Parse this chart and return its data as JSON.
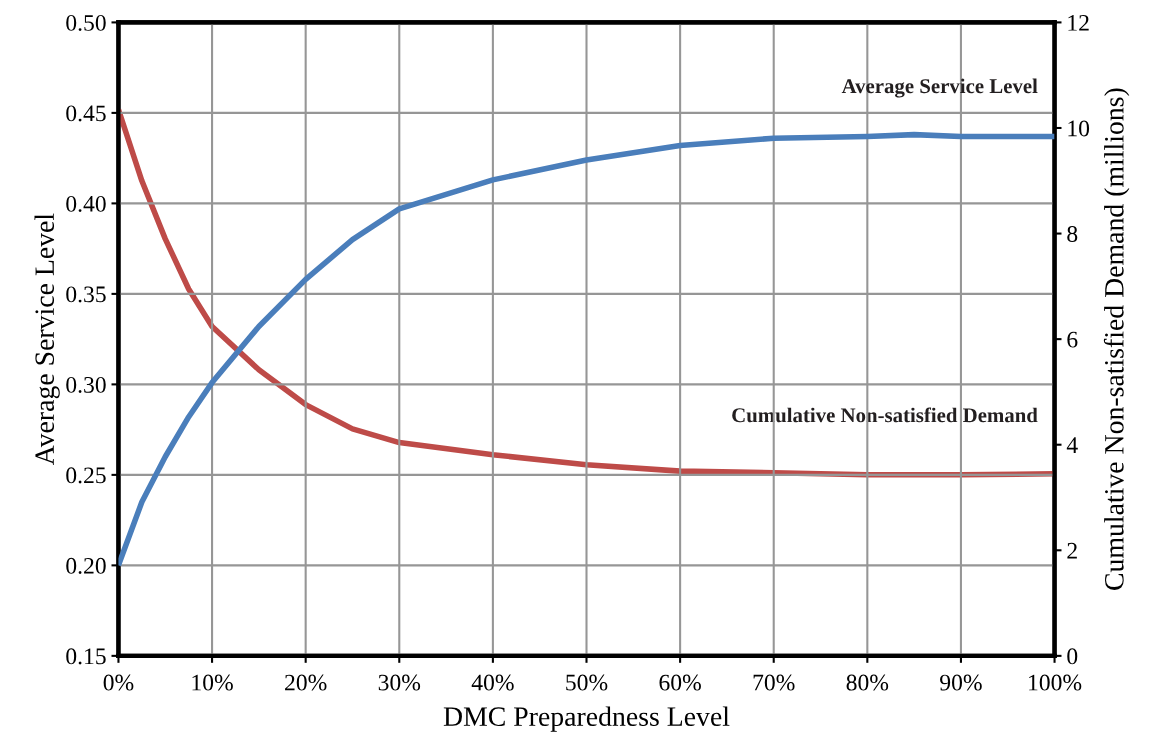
{
  "chart_data": {
    "type": "line",
    "xlabel": "DMC Preparedness Level",
    "ylabel": "Average Service Level",
    "y2label": "Cumulative Non-satisfied Demand (millions)",
    "x": [
      0,
      2.5,
      5,
      7.5,
      10,
      15,
      20,
      25,
      30,
      40,
      50,
      60,
      70,
      80,
      85,
      90,
      100
    ],
    "series": [
      {
        "name": "Average Service Level",
        "color": "#4a7ebb",
        "values": [
          0.2,
          0.235,
          0.26,
          0.282,
          0.301,
          0.332,
          0.358,
          0.38,
          0.397,
          0.413,
          0.424,
          0.432,
          0.436,
          0.437,
          0.438,
          0.437,
          0.437
        ]
      },
      {
        "name": "Cumulative Non-satisfied Demand",
        "color": "#be4b48",
        "axis": "y2",
        "values": [
          10.35,
          9.0,
          7.9,
          6.95,
          6.24,
          5.42,
          4.76,
          4.3,
          4.04,
          3.81,
          3.62,
          3.5,
          3.47,
          3.43,
          3.43,
          3.43,
          3.45
        ]
      }
    ],
    "xlim": [
      0,
      100
    ],
    "xticks": [
      {
        "value": 0,
        "label": "0%"
      },
      {
        "value": 10,
        "label": "10%"
      },
      {
        "value": 20,
        "label": "20%"
      },
      {
        "value": 30,
        "label": "30%"
      },
      {
        "value": 40,
        "label": "40%"
      },
      {
        "value": 50,
        "label": "50%"
      },
      {
        "value": 60,
        "label": "60%"
      },
      {
        "value": 70,
        "label": "70%"
      },
      {
        "value": 80,
        "label": "80%"
      },
      {
        "value": 90,
        "label": "90%"
      },
      {
        "value": 100,
        "label": "100%"
      }
    ],
    "ylim": [
      0.15,
      0.5
    ],
    "yticks": [
      {
        "value": 0.15,
        "label": "0.15"
      },
      {
        "value": 0.2,
        "label": "0.20"
      },
      {
        "value": 0.25,
        "label": "0.25"
      },
      {
        "value": 0.3,
        "label": "0.30"
      },
      {
        "value": 0.35,
        "label": "0.35"
      },
      {
        "value": 0.4,
        "label": "0.40"
      },
      {
        "value": 0.45,
        "label": "0.45"
      },
      {
        "value": 0.5,
        "label": "0.50"
      }
    ],
    "y2lim": [
      0,
      12
    ],
    "y2ticks": [
      0,
      2,
      4,
      6,
      8,
      10,
      12
    ],
    "grid": true,
    "marker": "none",
    "line_style": "solid"
  }
}
